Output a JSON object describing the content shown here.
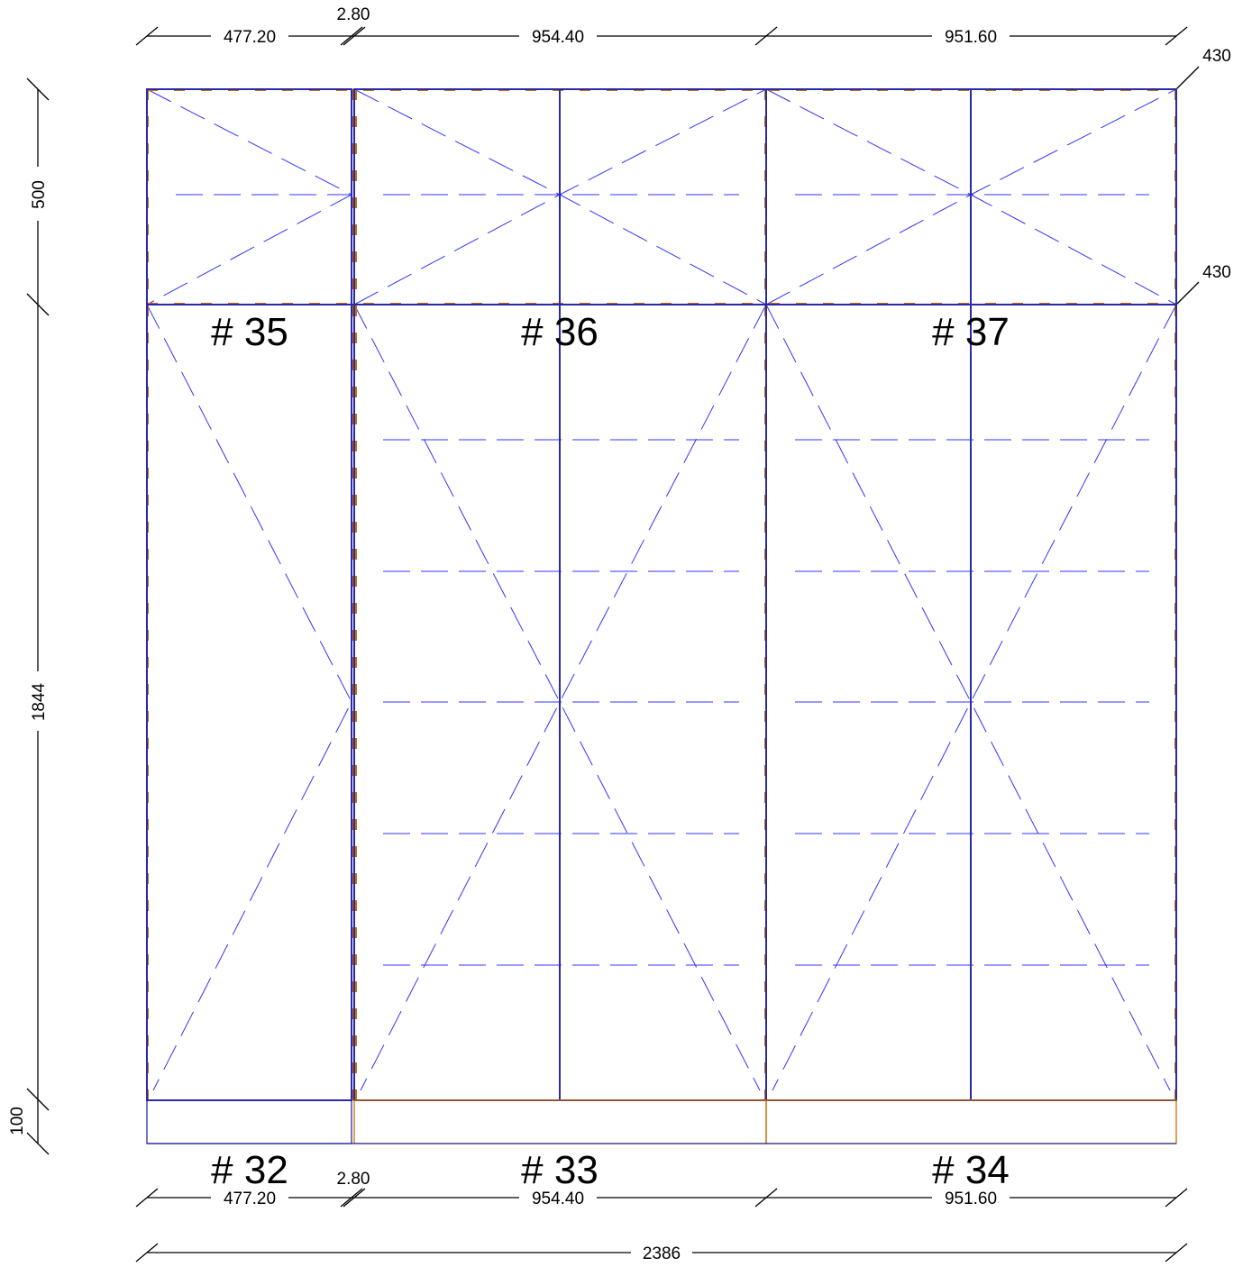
{
  "colors": {
    "frame_blue": "#2020c0",
    "dash_blue": "#3333ff",
    "edge_orange": "#c87000",
    "dimension_black": "#000000"
  },
  "dimensions": {
    "top": [
      "477.20",
      "2.80",
      "954.40",
      "951.60"
    ],
    "bottom": [
      "477.20",
      "2.80",
      "954.40",
      "951.60"
    ],
    "overall_width": "2386",
    "left": [
      "500",
      "1844",
      "100"
    ],
    "right": [
      "430",
      "430"
    ]
  },
  "cabinets": {
    "upper": [
      "# 35",
      "# 36",
      "# 37"
    ],
    "lower": [
      "# 32",
      "# 33",
      "# 34"
    ]
  }
}
